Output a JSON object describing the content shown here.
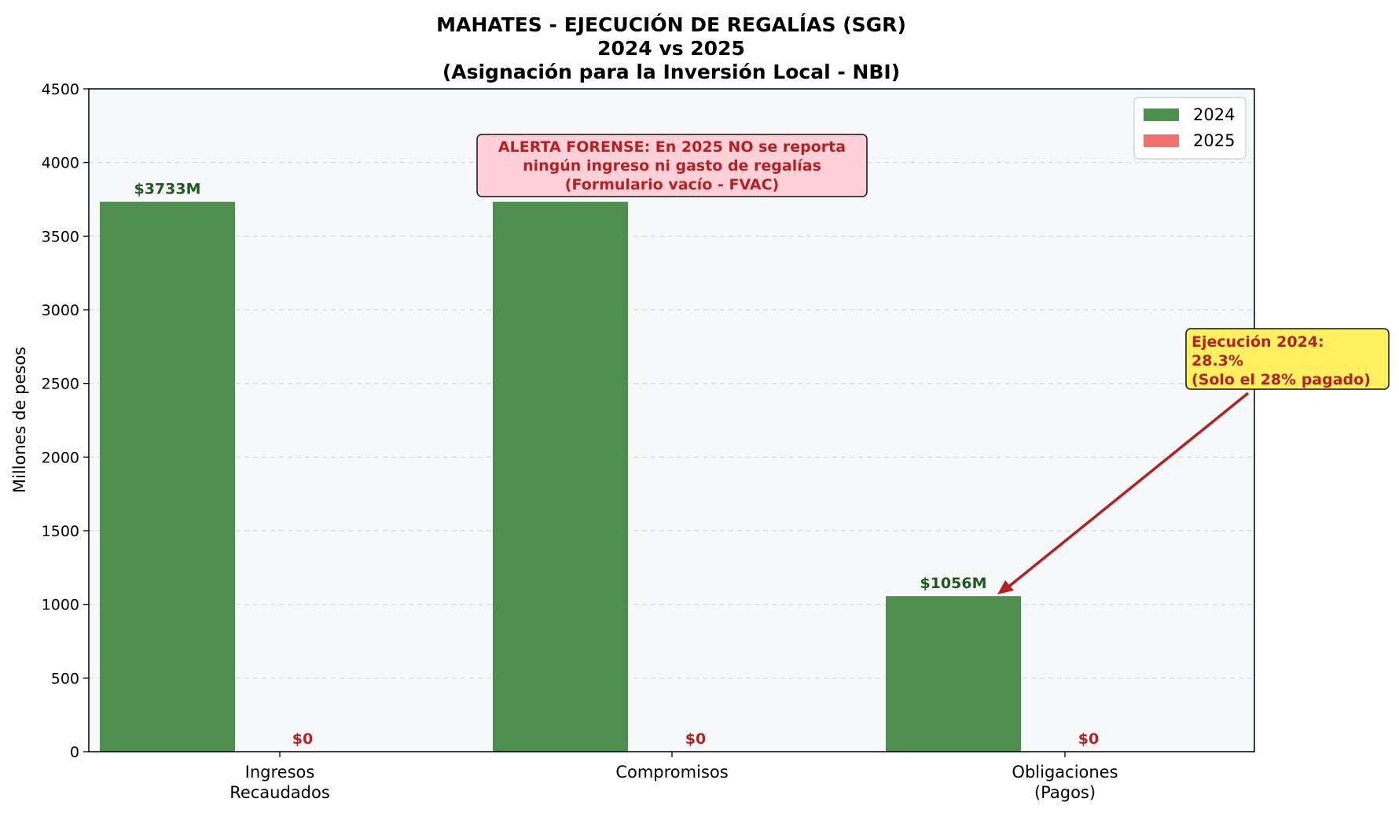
{
  "chart_data": {
    "type": "bar",
    "title": [
      "MAHATES - EJECUCIÓN DE REGALÍAS (SGR)",
      "2024 vs 2025",
      "(Asignación para la Inversión Local - NBI)"
    ],
    "ylabel": "Millones de pesos",
    "xlabel": "",
    "ylim": [
      0,
      4500
    ],
    "yticks": [
      0,
      500,
      1000,
      1500,
      2000,
      2500,
      3000,
      3500,
      4000,
      4500
    ],
    "grid": "y, dashed",
    "legend_position": "top-right",
    "categories": [
      [
        "Ingresos",
        "Recaudados"
      ],
      [
        "Compromisos"
      ],
      [
        "Obligaciones",
        "(Pagos)"
      ]
    ],
    "series": [
      {
        "name": "2024",
        "color": "#4e8f50",
        "label_color": "#1e5a1e",
        "values": [
          3733,
          3733,
          1056
        ],
        "labels": [
          "$3733M",
          "$3733M",
          "$1056M"
        ]
      },
      {
        "name": "2025",
        "color": "#f07070",
        "label_color": "#b22222",
        "values": [
          0,
          0,
          0
        ],
        "labels": [
          "$0",
          "$0",
          "$0"
        ]
      }
    ],
    "annotations": [
      {
        "lines": [
          "ALERTA FORENSE: En 2025 NO se reporta",
          "ningún ingreso ni gasto de regalías",
          "(Formulario vacío - FVAC)"
        ],
        "box_color": "#ffd0d8",
        "text_color": "#b22222"
      },
      {
        "lines": [
          "Ejecución 2024:",
          "28.3%",
          "(Solo el 28% pagado)"
        ],
        "box_color": "#fff060",
        "text_color": "#b22222",
        "arrow_color": "#b22222"
      }
    ]
  }
}
